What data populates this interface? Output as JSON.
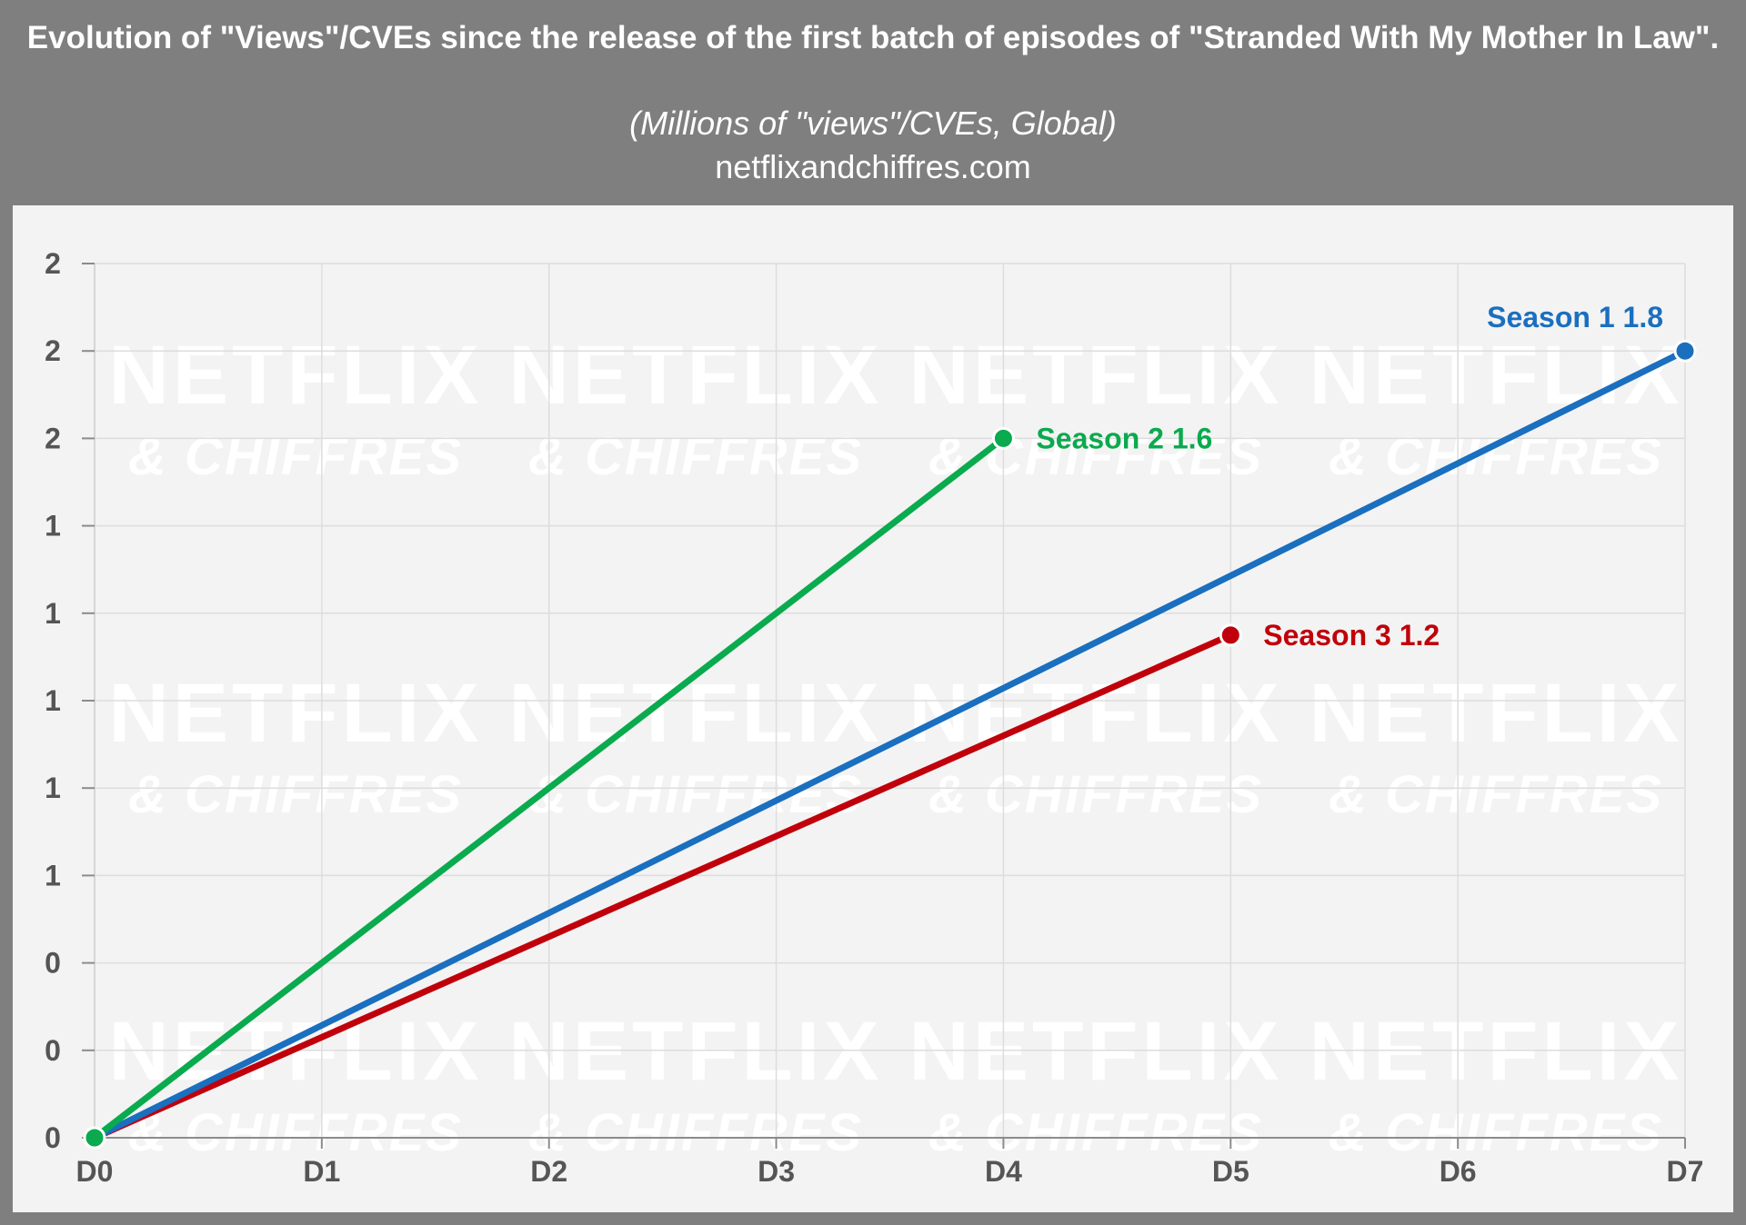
{
  "header": {
    "title": "Evolution of \"Views\"/CVEs since the release of the first batch of episodes of \"Stranded With My Mother In Law\".",
    "subtitle": "(Millions of \"views\"/CVEs, Global)",
    "source": "netflixandchiffres.com"
  },
  "watermark": {
    "line1": "NETFLIX",
    "line2": "& CHIFFRES"
  },
  "chart_data": {
    "type": "line",
    "title": "Evolution of \"Views\"/CVEs since the release of the first batch of episodes of \"Stranded With My Mother In Law\".",
    "subtitle": "(Millions of \"views\"/CVEs, Global)",
    "xlabel": "",
    "ylabel": "",
    "categories": [
      "D0",
      "D1",
      "D2",
      "D3",
      "D4",
      "D5",
      "D6",
      "D7"
    ],
    "ylim": [
      0,
      2.0
    ],
    "yticks": [
      0,
      0.2,
      0.4,
      0.6,
      0.8,
      1.0,
      1.2,
      1.4,
      1.6,
      1.8,
      2.0
    ],
    "ytick_labels": [
      "0",
      "0",
      "0",
      "1",
      "1",
      "1",
      "1",
      "1",
      "2",
      "2",
      "2"
    ],
    "grid": true,
    "legend": "none (labels at line ends)",
    "series": [
      {
        "name": "Season 1",
        "label": "Season 1 1.8",
        "color": "#1a6fbf",
        "x": [
          0,
          7
        ],
        "values": [
          0,
          1.8
        ]
      },
      {
        "name": "Season 2",
        "label": "Season 2 1.6",
        "color": "#0aaa4e",
        "x": [
          0,
          4
        ],
        "values": [
          0,
          1.6
        ]
      },
      {
        "name": "Season 3",
        "label": "Season 3 1.2",
        "color": "#c0000b",
        "x": [
          0,
          5
        ],
        "values": [
          0,
          1.15
        ]
      }
    ]
  }
}
